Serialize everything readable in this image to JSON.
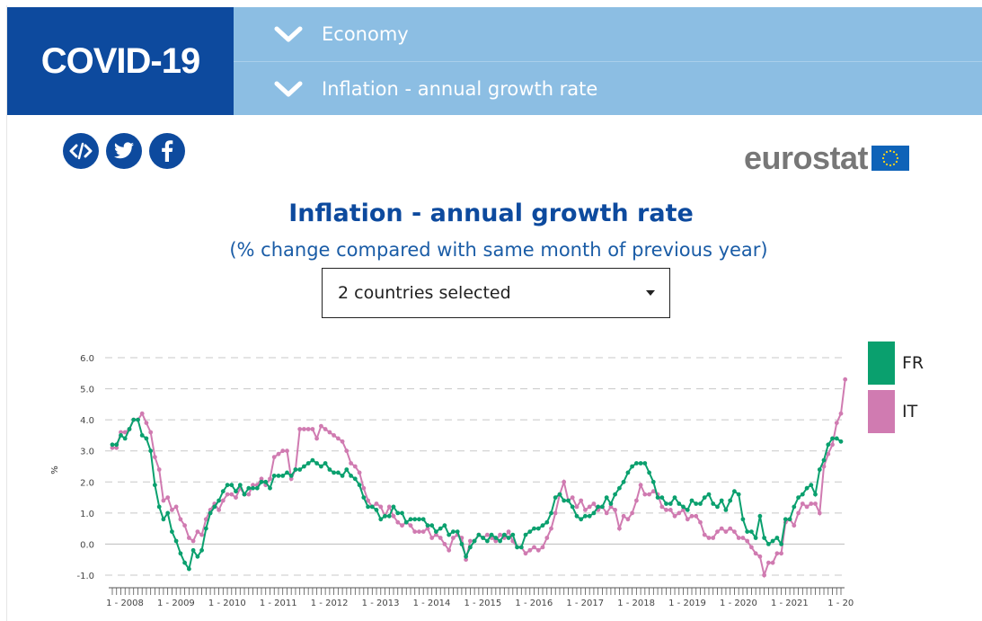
{
  "header": {
    "brand": "COVID-19",
    "nav": [
      {
        "label": "Economy"
      },
      {
        "label": "Inflation - annual growth rate"
      }
    ]
  },
  "logo": {
    "text": "eurostat"
  },
  "social": [
    {
      "icon": "embed-icon"
    },
    {
      "icon": "twitter-icon"
    },
    {
      "icon": "facebook-icon"
    }
  ],
  "selector": {
    "value": "2 countries selected"
  },
  "colors": {
    "brand_blue": "#0d4a9e",
    "nav_blue": "#8cbee3",
    "FR": "#0aa06e",
    "IT": "#d07bb1"
  },
  "chart_data": {
    "type": "line",
    "title": "Inflation - annual growth rate",
    "subtitle": "(% change compared with same month of previous year)",
    "ylabel": "%",
    "ylim": [
      -1.0,
      6.0
    ],
    "yticks": [
      "6.0",
      "5.0",
      "4.0",
      "3.0",
      "2.0",
      "1.0",
      "0.0",
      "-1.0"
    ],
    "xtick_labels": [
      "1 - 2008",
      "1 - 2009",
      "1 - 2010",
      "1 - 2011",
      "1 - 2012",
      "1 - 2013",
      "1 - 2014",
      "1 - 2015",
      "1 - 2016",
      "1 - 2017",
      "1 - 2018",
      "1 - 2019",
      "1 - 2020",
      "1 - 2021",
      "1 - 20"
    ],
    "grid": true,
    "legend": "right",
    "series": [
      {
        "name": "FR",
        "color": "#0aa06e",
        "values": [
          3.2,
          3.2,
          3.5,
          3.4,
          3.7,
          4.0,
          4.0,
          3.5,
          3.4,
          3.0,
          1.9,
          1.2,
          0.8,
          1.0,
          0.4,
          0.1,
          -0.3,
          -0.6,
          -0.8,
          -0.2,
          -0.4,
          -0.2,
          0.5,
          1.0,
          1.2,
          1.4,
          1.7,
          1.9,
          1.9,
          1.7,
          1.9,
          1.6,
          1.8,
          1.8,
          1.8,
          2.0,
          2.0,
          1.8,
          2.2,
          2.2,
          2.2,
          2.3,
          2.2,
          2.4,
          2.4,
          2.5,
          2.6,
          2.7,
          2.6,
          2.5,
          2.6,
          2.4,
          2.3,
          2.3,
          2.2,
          2.4,
          2.2,
          2.1,
          1.9,
          1.5,
          1.2,
          1.2,
          1.1,
          0.8,
          0.9,
          0.9,
          1.2,
          1.0,
          1.0,
          0.7,
          0.8,
          0.8,
          0.8,
          0.8,
          0.6,
          0.6,
          0.4,
          0.5,
          0.6,
          0.3,
          0.4,
          0.4,
          0.0,
          -0.4,
          -0.1,
          0.1,
          0.3,
          0.2,
          0.1,
          0.3,
          0.2,
          0.1,
          0.3,
          0.2,
          0.3,
          -0.1,
          -0.1,
          0.3,
          0.4,
          0.5,
          0.5,
          0.6,
          0.7,
          1.0,
          1.5,
          1.6,
          1.4,
          1.4,
          1.2,
          0.9,
          0.8,
          0.9,
          0.9,
          1.0,
          1.2,
          1.2,
          1.5,
          1.3,
          1.6,
          1.8,
          2.0,
          2.3,
          2.5,
          2.6,
          2.6,
          2.6,
          2.3,
          2.0,
          1.5,
          1.5,
          1.3,
          1.3,
          1.5,
          1.3,
          1.2,
          1.1,
          1.4,
          1.3,
          1.3,
          1.5,
          1.6,
          1.3,
          1.2,
          1.4,
          1.1,
          1.4,
          1.7,
          1.6,
          0.8,
          0.4,
          0.4,
          0.2,
          0.9,
          0.2,
          0.0,
          0.1,
          0.2,
          0.0,
          0.8,
          0.8,
          1.2,
          1.5,
          1.6,
          1.8,
          1.9,
          1.6,
          2.4,
          2.7,
          3.2,
          3.4,
          3.4,
          3.3
        ]
      },
      {
        "name": "IT",
        "color": "#d07bb1",
        "values": [
          3.1,
          3.1,
          3.6,
          3.6,
          3.7,
          4.0,
          4.0,
          4.2,
          3.9,
          3.6,
          2.8,
          2.4,
          1.4,
          1.5,
          1.1,
          1.2,
          0.8,
          0.6,
          0.2,
          0.1,
          0.4,
          0.3,
          0.8,
          1.1,
          1.3,
          1.1,
          1.4,
          1.6,
          1.6,
          1.5,
          1.8,
          1.6,
          1.6,
          1.9,
          1.9,
          2.1,
          1.9,
          2.1,
          2.8,
          2.9,
          3.0,
          3.0,
          2.1,
          2.4,
          3.7,
          3.7,
          3.7,
          3.7,
          3.4,
          3.8,
          3.7,
          3.6,
          3.5,
          3.4,
          3.3,
          3.0,
          2.6,
          2.5,
          2.3,
          1.8,
          1.4,
          1.2,
          1.3,
          1.2,
          0.9,
          1.2,
          0.9,
          0.7,
          0.6,
          0.7,
          0.6,
          0.4,
          0.4,
          0.4,
          0.5,
          0.2,
          0.3,
          0.2,
          0.0,
          -0.2,
          0.2,
          0.3,
          0.2,
          -0.5,
          0.1,
          0.1,
          0.3,
          0.2,
          0.3,
          0.2,
          0.1,
          0.3,
          0.2,
          0.4,
          0.1,
          -0.1,
          -0.1,
          -0.3,
          -0.2,
          -0.1,
          -0.2,
          -0.1,
          0.2,
          0.5,
          1.0,
          1.6,
          2.0,
          1.4,
          1.5,
          1.2,
          1.4,
          1.1,
          1.2,
          1.3,
          1.1,
          1.2,
          1.0,
          1.2,
          1.1,
          0.5,
          0.9,
          0.8,
          1.0,
          1.4,
          1.9,
          1.6,
          1.6,
          1.7,
          1.6,
          1.2,
          1.1,
          1.1,
          0.9,
          1.0,
          1.1,
          0.8,
          0.9,
          0.9,
          0.7,
          0.3,
          0.2,
          0.2,
          0.4,
          0.5,
          0.4,
          0.5,
          0.4,
          0.2,
          0.2,
          0.1,
          -0.1,
          -0.3,
          -0.4,
          -1.0,
          -0.6,
          -0.6,
          -0.3,
          -0.3,
          0.7,
          0.8,
          0.6,
          1.0,
          1.3,
          1.2,
          1.3,
          1.3,
          1.0,
          2.5,
          2.9,
          3.2,
          3.9,
          4.2,
          5.3
        ]
      }
    ]
  }
}
